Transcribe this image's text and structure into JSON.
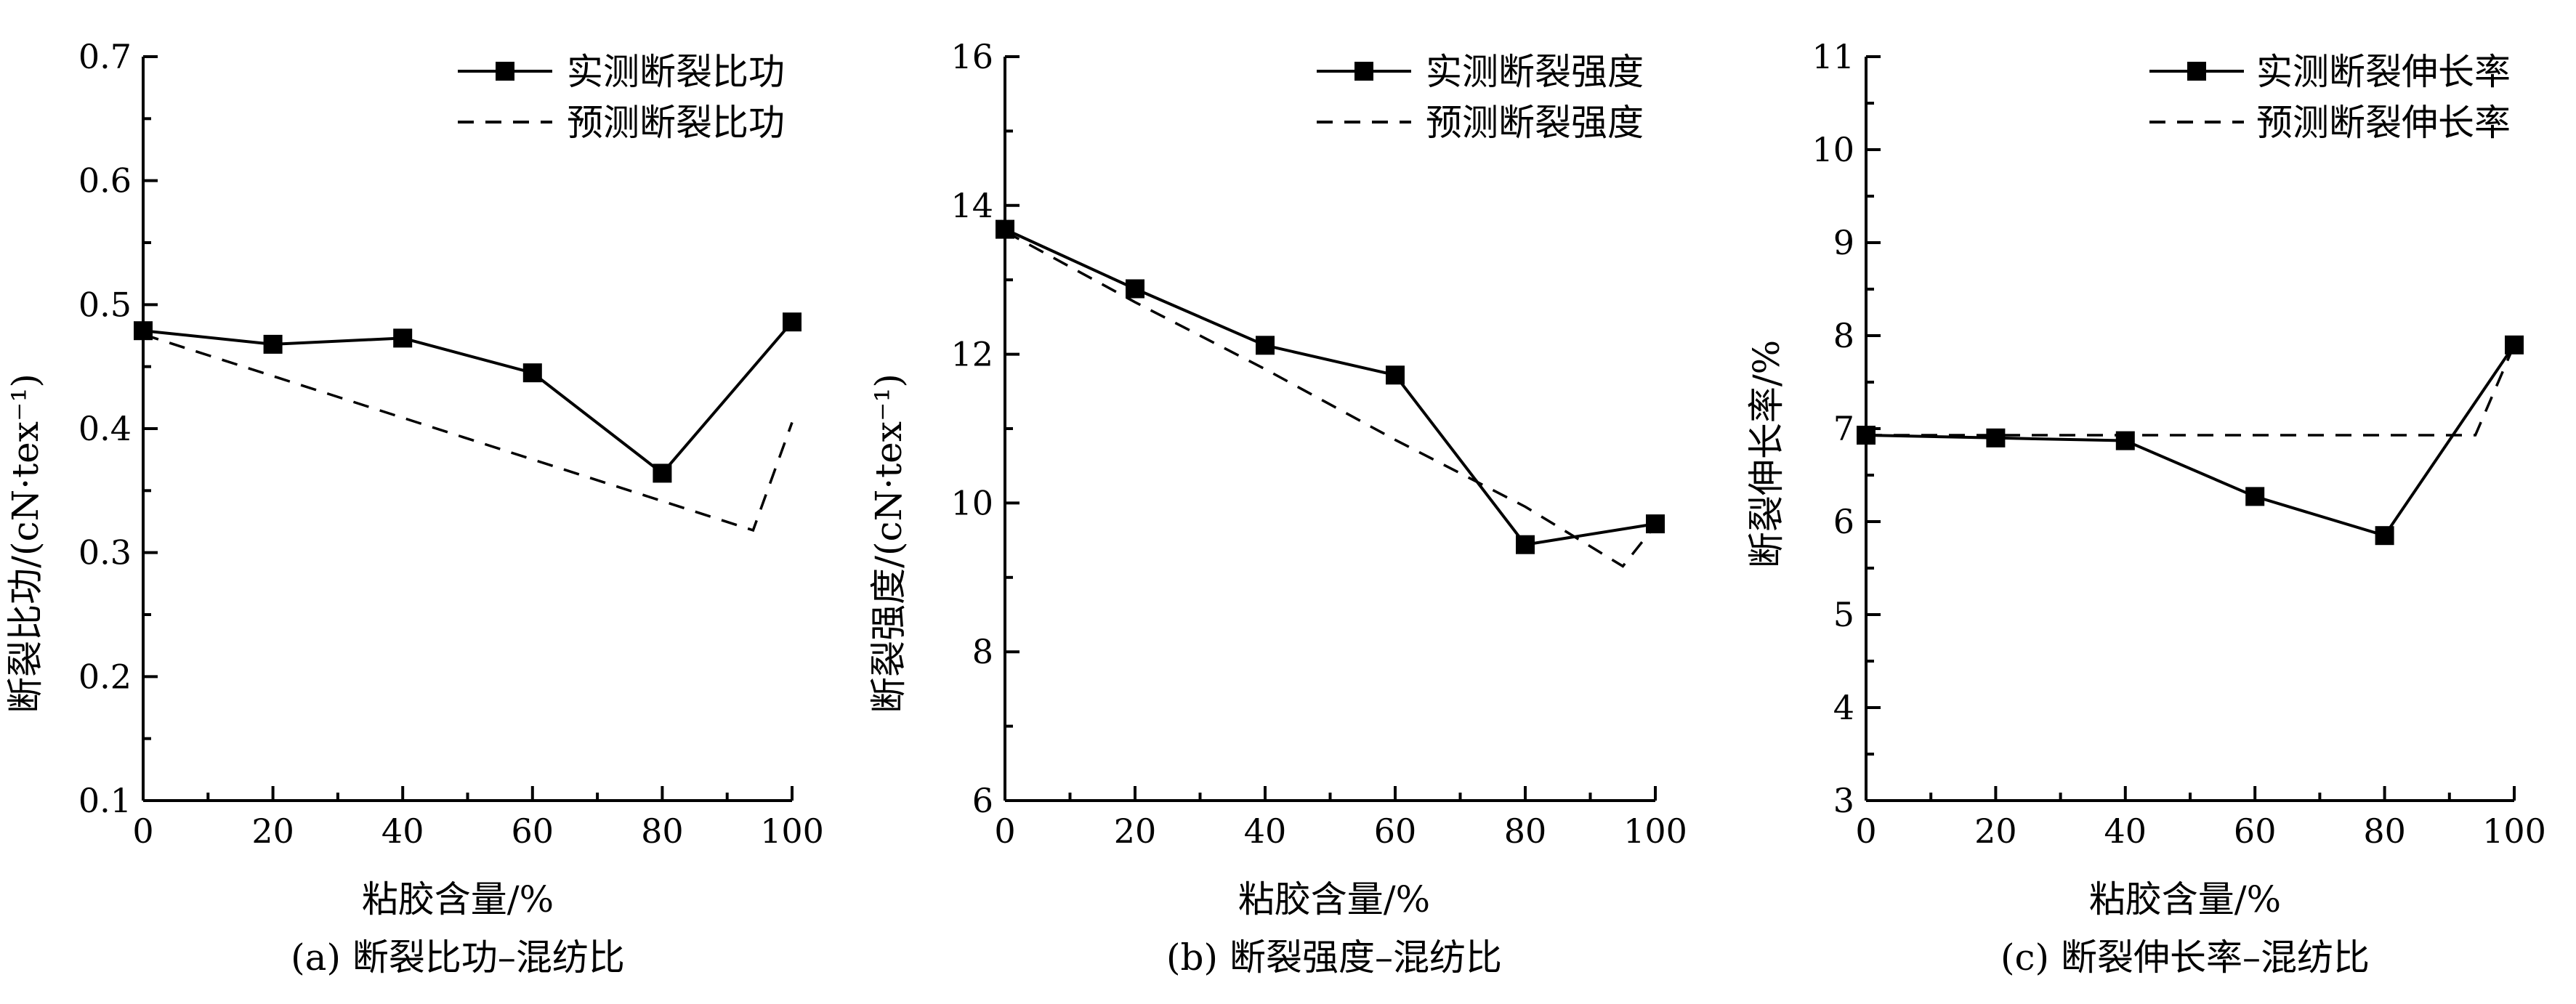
{
  "figure": {
    "charts": [
      {
        "caption": "(a) 断裂比功–混纺比",
        "xlabel": "粘胶含量/%",
        "ylabel": "断裂比功/(cN·tex⁻¹)",
        "legend": {
          "measured": "实测断裂比功",
          "predicted": "预测断裂比功"
        }
      },
      {
        "caption": "(b) 断裂强度–混纺比",
        "xlabel": "粘胶含量/%",
        "ylabel": "断裂强度/(cN·tex⁻¹)",
        "legend": {
          "measured": "实测断裂强度",
          "predicted": "预测断裂强度"
        }
      },
      {
        "caption": "(c) 断裂伸长率–混纺比",
        "xlabel": "粘胶含量/%",
        "ylabel": "断裂伸长率/%",
        "legend": {
          "measured": "实测断裂伸长率",
          "predicted": "预测断裂伸长率"
        }
      }
    ]
  },
  "chart_data": [
    {
      "type": "line",
      "title": "(a) 断裂比功–混纺比",
      "xlabel": "粘胶含量/%",
      "ylabel": "断裂比功/(cN·tex⁻¹)",
      "xlim": [
        0,
        100
      ],
      "ylim": [
        0.1,
        0.7
      ],
      "xticks": [
        0,
        20,
        40,
        60,
        80,
        100
      ],
      "yticks": [
        0.1,
        0.2,
        0.3,
        0.4,
        0.5,
        0.6,
        0.7
      ],
      "ytick_labels": [
        "0.1",
        "0.2",
        "0.3",
        "0.4",
        "0.5",
        "0.6",
        "0.7"
      ],
      "legend_position": "top-right",
      "series": [
        {
          "name": "实测断裂比功",
          "style": "solid-square",
          "x": [
            0,
            20,
            40,
            60,
            80,
            100
          ],
          "y": [
            0.479,
            0.468,
            0.473,
            0.445,
            0.364,
            0.486
          ]
        },
        {
          "name": "预测断裂比功",
          "style": "dashed",
          "x": [
            0,
            94,
            100
          ],
          "y": [
            0.476,
            0.318,
            0.405
          ]
        }
      ]
    },
    {
      "type": "line",
      "title": "(b) 断裂强度–混纺比",
      "xlabel": "粘胶含量/%",
      "ylabel": "断裂强度/(cN·tex⁻¹)",
      "xlim": [
        0,
        100
      ],
      "ylim": [
        6,
        16
      ],
      "xticks": [
        0,
        20,
        40,
        60,
        80,
        100
      ],
      "yticks": [
        6,
        8,
        10,
        12,
        14,
        16
      ],
      "ytick_labels": [
        "6",
        "8",
        "10",
        "12",
        "14",
        "16"
      ],
      "legend_position": "top-right",
      "series": [
        {
          "name": "实测断裂强度",
          "style": "solid-square",
          "x": [
            0,
            20,
            40,
            60,
            80,
            100
          ],
          "y": [
            13.68,
            12.88,
            12.12,
            11.72,
            9.44,
            9.72
          ]
        },
        {
          "name": "预测断裂强度",
          "style": "dashed",
          "x": [
            0,
            20,
            40,
            60,
            80,
            95,
            100
          ],
          "y": [
            13.65,
            12.7,
            11.8,
            10.85,
            9.95,
            9.15,
            9.7
          ]
        }
      ]
    },
    {
      "type": "line",
      "title": "(c) 断裂伸长率–混纺比",
      "xlabel": "粘胶含量/%",
      "ylabel": "断裂伸长率/%",
      "xlim": [
        0,
        100
      ],
      "ylim": [
        3,
        11
      ],
      "xticks": [
        0,
        20,
        40,
        60,
        80,
        100
      ],
      "yticks": [
        3,
        4,
        5,
        6,
        7,
        8,
        9,
        10,
        11
      ],
      "ytick_labels": [
        "3",
        "4",
        "5",
        "6",
        "7",
        "8",
        "9",
        "10",
        "11"
      ],
      "legend_position": "top-right",
      "series": [
        {
          "name": "实测断裂伸长率",
          "style": "solid-square",
          "x": [
            0,
            20,
            40,
            60,
            80,
            100
          ],
          "y": [
            6.93,
            6.9,
            6.87,
            6.27,
            5.85,
            7.9
          ]
        },
        {
          "name": "预测断裂伸长率",
          "style": "dashed",
          "x": [
            0,
            94,
            100
          ],
          "y": [
            6.93,
            6.93,
            7.9
          ]
        }
      ]
    }
  ]
}
